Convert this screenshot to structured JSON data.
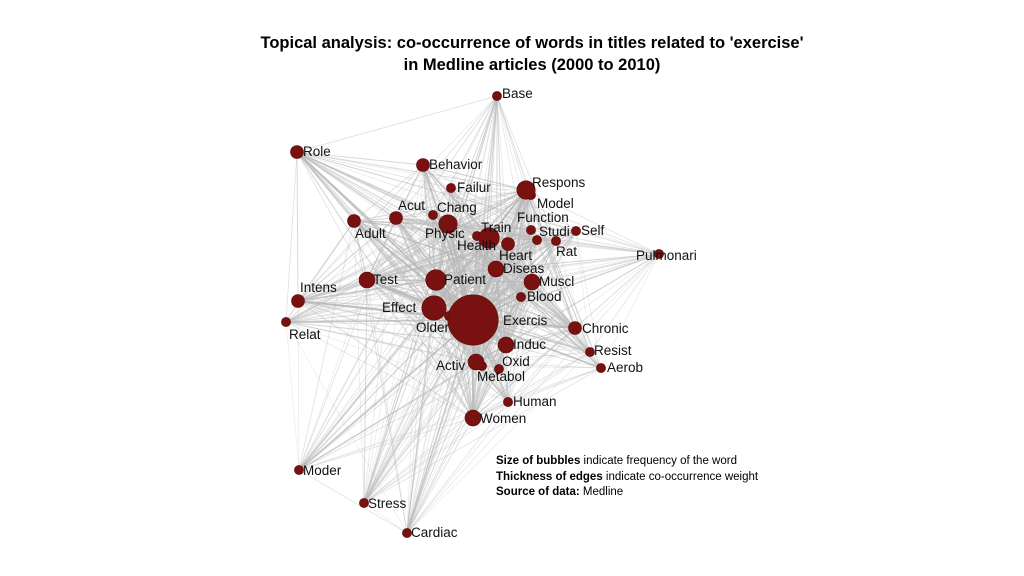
{
  "title": {
    "line1": "Topical analysis: co-occurrence of words in titles related to 'exercise'",
    "line2": "in Medline articles (2000 to 2010)"
  },
  "colors": {
    "node": "#7a1111",
    "edge": "#b8b8b8",
    "text": "#111111"
  },
  "nodes": [
    {
      "id": "Base",
      "label": "Base",
      "size": 1
    },
    {
      "id": "Role",
      "label": "Role",
      "size": 2
    },
    {
      "id": "Behavior",
      "label": "Behavior",
      "size": 2
    },
    {
      "id": "Failur",
      "label": "Failur",
      "size": 1
    },
    {
      "id": "Respons",
      "label": "Respons",
      "size": 4
    },
    {
      "id": "Model",
      "label": "Model",
      "size": 1
    },
    {
      "id": "Acut",
      "label": "Acut",
      "size": 2
    },
    {
      "id": "Chang",
      "label": "Chang",
      "size": 1
    },
    {
      "id": "Adult",
      "label": "Adult",
      "size": 2
    },
    {
      "id": "Physic",
      "label": "Physic",
      "size": 4
    },
    {
      "id": "Train",
      "label": "Train",
      "size": 1
    },
    {
      "id": "Function",
      "label": "Function",
      "size": 1
    },
    {
      "id": "Self",
      "label": "Self",
      "size": 1
    },
    {
      "id": "Studi",
      "label": "Studi",
      "size": 1
    },
    {
      "id": "Health",
      "label": "Health",
      "size": 5
    },
    {
      "id": "Rat",
      "label": "Rat",
      "size": 1
    },
    {
      "id": "Heart",
      "label": "Heart",
      "size": 2
    },
    {
      "id": "Pulmonari",
      "label": "Pulmonari",
      "size": 1
    },
    {
      "id": "Diseas",
      "label": "Diseas",
      "size": 3
    },
    {
      "id": "Test",
      "label": "Test",
      "size": 3
    },
    {
      "id": "Patient",
      "label": "Patient",
      "size": 5
    },
    {
      "id": "Muscl",
      "label": "Muscl",
      "size": 3
    },
    {
      "id": "Intens",
      "label": "Intens",
      "size": 2
    },
    {
      "id": "Blood",
      "label": "Blood",
      "size": 1
    },
    {
      "id": "Effect",
      "label": "Effect",
      "size": 7
    },
    {
      "id": "Exercis",
      "label": "Exercis",
      "size": 30
    },
    {
      "id": "Older",
      "label": "Older",
      "size": 1
    },
    {
      "id": "Relat",
      "label": "Relat",
      "size": 1
    },
    {
      "id": "Chronic",
      "label": "Chronic",
      "size": 2
    },
    {
      "id": "Induc",
      "label": "Induc",
      "size": 3
    },
    {
      "id": "Resist",
      "label": "Resist",
      "size": 1
    },
    {
      "id": "Activ",
      "label": "Activ",
      "size": 3
    },
    {
      "id": "Oxid",
      "label": "Oxid",
      "size": 1
    },
    {
      "id": "Metabol",
      "label": "Metabol",
      "size": 1
    },
    {
      "id": "Aerob",
      "label": "Aerob",
      "size": 1
    },
    {
      "id": "Human",
      "label": "Human",
      "size": 1
    },
    {
      "id": "Women",
      "label": "Women",
      "size": 3
    },
    {
      "id": "Moder",
      "label": "Moder",
      "size": 1
    },
    {
      "id": "Stress",
      "label": "Stress",
      "size": 1
    },
    {
      "id": "Cardiac",
      "label": "Cardiac",
      "size": 1
    }
  ],
  "legend_note": {
    "line1_bold": "Size of bubbles",
    "line1_rest": " indicate frequency of the word",
    "line2_bold": "Thickness of edges",
    "line2_rest": " indicate co-occurrence weight",
    "line3_bold": "Source of data:",
    "line3_rest": " Medline"
  }
}
